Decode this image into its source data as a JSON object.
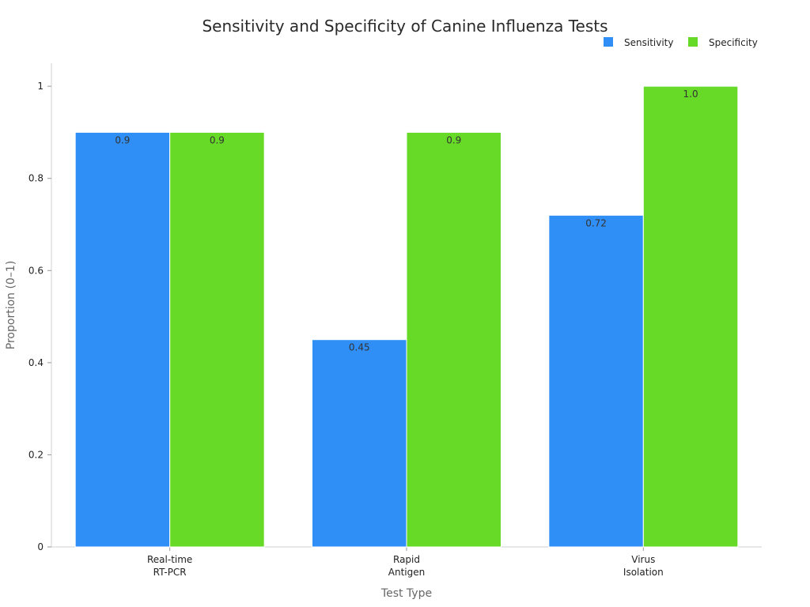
{
  "chart_data": {
    "type": "bar",
    "title": "Sensitivity and Specificity of Canine Influenza Tests",
    "xlabel": "Test Type",
    "ylabel": "Proportion (0–1)",
    "ylim": [
      0,
      1.05
    ],
    "yticks": [
      0,
      0.2,
      0.4,
      0.6,
      0.8,
      1
    ],
    "ytick_labels": [
      "0",
      "0.2",
      "0.4",
      "0.6",
      "0.8",
      "1"
    ],
    "categories": [
      [
        "Real-time",
        "RT-PCR"
      ],
      [
        "Rapid",
        "Antigen"
      ],
      [
        "Virus",
        "Isolation"
      ]
    ],
    "series": [
      {
        "name": "Sensitivity",
        "color": "#2f8ff7",
        "values": [
          0.9,
          0.45,
          0.72
        ],
        "labels": [
          "0.9",
          "0.45",
          "0.72"
        ]
      },
      {
        "name": "Specificity",
        "color": "#66da26",
        "values": [
          0.9,
          0.9,
          1.0
        ],
        "labels": [
          "0.9",
          "0.9",
          "1.0"
        ]
      }
    ],
    "legend": "top-right",
    "grid": false
  }
}
